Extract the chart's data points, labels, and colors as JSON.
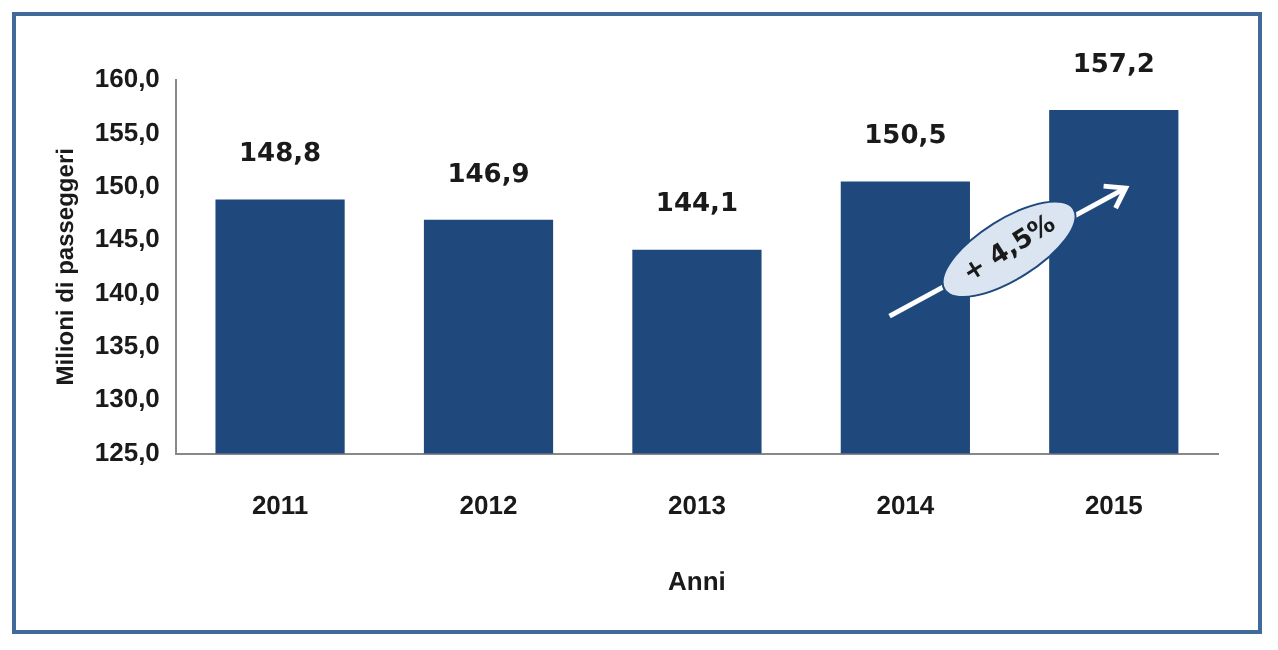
{
  "chart_data": {
    "type": "bar",
    "xlabel": "Anni",
    "ylabel": "Milioni di passeggeri",
    "categories": [
      "2011",
      "2012",
      "2013",
      "2014",
      "2015"
    ],
    "values": [
      148.8,
      146.9,
      144.1,
      150.5,
      157.2
    ],
    "value_labels": [
      "148,8",
      "146,9",
      "144,1",
      "150,5",
      "157,2"
    ],
    "color": "#1f497d",
    "ylim": [
      125,
      160
    ],
    "yticks": [
      {
        "value": 125,
        "label": "125,0"
      },
      {
        "value": 130,
        "label": "130,0"
      },
      {
        "value": 135,
        "label": "135,0"
      },
      {
        "value": 140,
        "label": "140,0"
      },
      {
        "value": 145,
        "label": "145,0"
      },
      {
        "value": 150,
        "label": "150,0"
      },
      {
        "value": 155,
        "label": "155,0"
      },
      {
        "value": 160,
        "label": "160,0"
      }
    ],
    "grid": false,
    "legend": false,
    "annotations": [
      "+ 4,5%"
    ]
  }
}
